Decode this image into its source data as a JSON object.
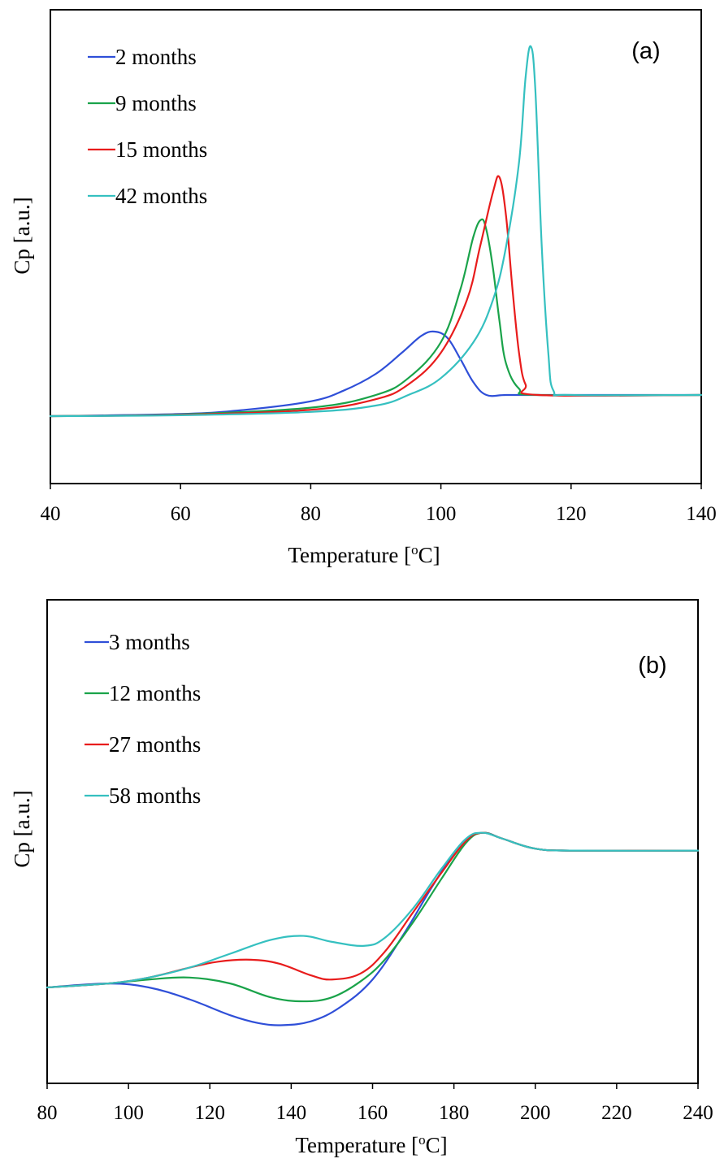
{
  "chart_data": [
    {
      "type": "line",
      "panel_label": "(a)",
      "xlabel": "Temperature [",
      "xlabel_sup": "o",
      "xlabel_tail": "C]",
      "ylabel": "Cp [a.u.]",
      "xlim": [
        40,
        140
      ],
      "x_ticks": [
        "40",
        "60",
        "80",
        "100",
        "120",
        "140"
      ],
      "y_ticks_shown": false,
      "legend_position": "top-left",
      "grid": false,
      "series": [
        {
          "name": "2 months",
          "color": "#2f4fd8",
          "x": [
            40,
            60,
            70,
            80,
            85,
            90,
            94,
            97,
            99,
            101,
            103,
            105,
            107,
            110,
            115,
            140
          ],
          "y": [
            0,
            0.01,
            0.03,
            0.07,
            0.12,
            0.2,
            0.3,
            0.38,
            0.4,
            0.37,
            0.27,
            0.16,
            0.1,
            0.1,
            0.1,
            0.1
          ]
        },
        {
          "name": "9 months",
          "color": "#1aa34a",
          "x": [
            40,
            60,
            80,
            90,
            95,
            100,
            103,
            105,
            106.2,
            107,
            108,
            109,
            110,
            112,
            115,
            140
          ],
          "y": [
            0,
            0.008,
            0.04,
            0.1,
            0.18,
            0.35,
            0.6,
            0.85,
            0.93,
            0.88,
            0.7,
            0.45,
            0.25,
            0.13,
            0.1,
            0.1
          ]
        },
        {
          "name": "15 months",
          "color": "#e81c1c",
          "x": [
            40,
            60,
            80,
            90,
            95,
            100,
            104,
            106,
            108,
            109,
            110,
            111,
            112,
            113,
            115,
            140
          ],
          "y": [
            0,
            0.006,
            0.03,
            0.08,
            0.15,
            0.3,
            0.55,
            0.8,
            1.06,
            1.13,
            0.95,
            0.6,
            0.3,
            0.15,
            0.1,
            0.1
          ]
        },
        {
          "name": "42 months",
          "color": "#35c0c0",
          "x": [
            40,
            60,
            80,
            90,
            95,
            100,
            105,
            108,
            110,
            112,
            113,
            113.8,
            114.5,
            115.5,
            116.5,
            117.3,
            120,
            140
          ],
          "y": [
            0,
            0.004,
            0.02,
            0.05,
            0.1,
            0.18,
            0.35,
            0.55,
            0.8,
            1.2,
            1.6,
            1.75,
            1.55,
            0.8,
            0.3,
            0.12,
            0.1,
            0.1
          ]
        }
      ]
    },
    {
      "type": "line",
      "panel_label": "(b)",
      "xlabel": "Temperature [",
      "xlabel_sup": "o",
      "xlabel_tail": "C]",
      "ylabel": "Cp [a.u.]",
      "xlim": [
        80,
        240
      ],
      "x_ticks": [
        "80",
        "100",
        "120",
        "140",
        "160",
        "180",
        "200",
        "220",
        "240"
      ],
      "y_ticks_shown": false,
      "legend_position": "top-left",
      "grid": false,
      "series": [
        {
          "name": "3 months",
          "color": "#2f4fd8",
          "x": [
            80,
            95,
            105,
            115,
            125,
            132,
            138,
            145,
            152,
            160,
            168,
            175,
            182,
            187,
            192,
            200,
            210,
            240
          ],
          "y": [
            0,
            0.02,
            0.0,
            -0.06,
            -0.14,
            -0.18,
            -0.19,
            -0.17,
            -0.1,
            0.04,
            0.28,
            0.52,
            0.73,
            0.78,
            0.75,
            0.7,
            0.69,
            0.69
          ]
        },
        {
          "name": "12 months",
          "color": "#1aa34a",
          "x": [
            80,
            95,
            105,
            115,
            125,
            135,
            143,
            150,
            157,
            163,
            170,
            177,
            183,
            187,
            192,
            200,
            210,
            240
          ],
          "y": [
            0,
            0.02,
            0.04,
            0.05,
            0.02,
            -0.05,
            -0.07,
            -0.05,
            0.03,
            0.14,
            0.33,
            0.55,
            0.73,
            0.78,
            0.75,
            0.7,
            0.69,
            0.69
          ]
        },
        {
          "name": "27 months",
          "color": "#e81c1c",
          "x": [
            80,
            95,
            105,
            115,
            122,
            130,
            137,
            145,
            150,
            157,
            163,
            170,
            177,
            183,
            187,
            192,
            200,
            210,
            240
          ],
          "y": [
            0,
            0.02,
            0.05,
            0.1,
            0.13,
            0.14,
            0.12,
            0.06,
            0.04,
            0.07,
            0.18,
            0.38,
            0.58,
            0.74,
            0.78,
            0.75,
            0.7,
            0.69,
            0.69
          ]
        },
        {
          "name": "58 months",
          "color": "#35c0c0",
          "x": [
            80,
            95,
            105,
            115,
            125,
            135,
            143,
            150,
            158,
            163,
            170,
            177,
            183,
            187,
            192,
            200,
            210,
            240
          ],
          "y": [
            0,
            0.02,
            0.05,
            0.1,
            0.17,
            0.24,
            0.26,
            0.23,
            0.21,
            0.25,
            0.4,
            0.6,
            0.75,
            0.78,
            0.75,
            0.7,
            0.69,
            0.69
          ]
        }
      ]
    }
  ]
}
